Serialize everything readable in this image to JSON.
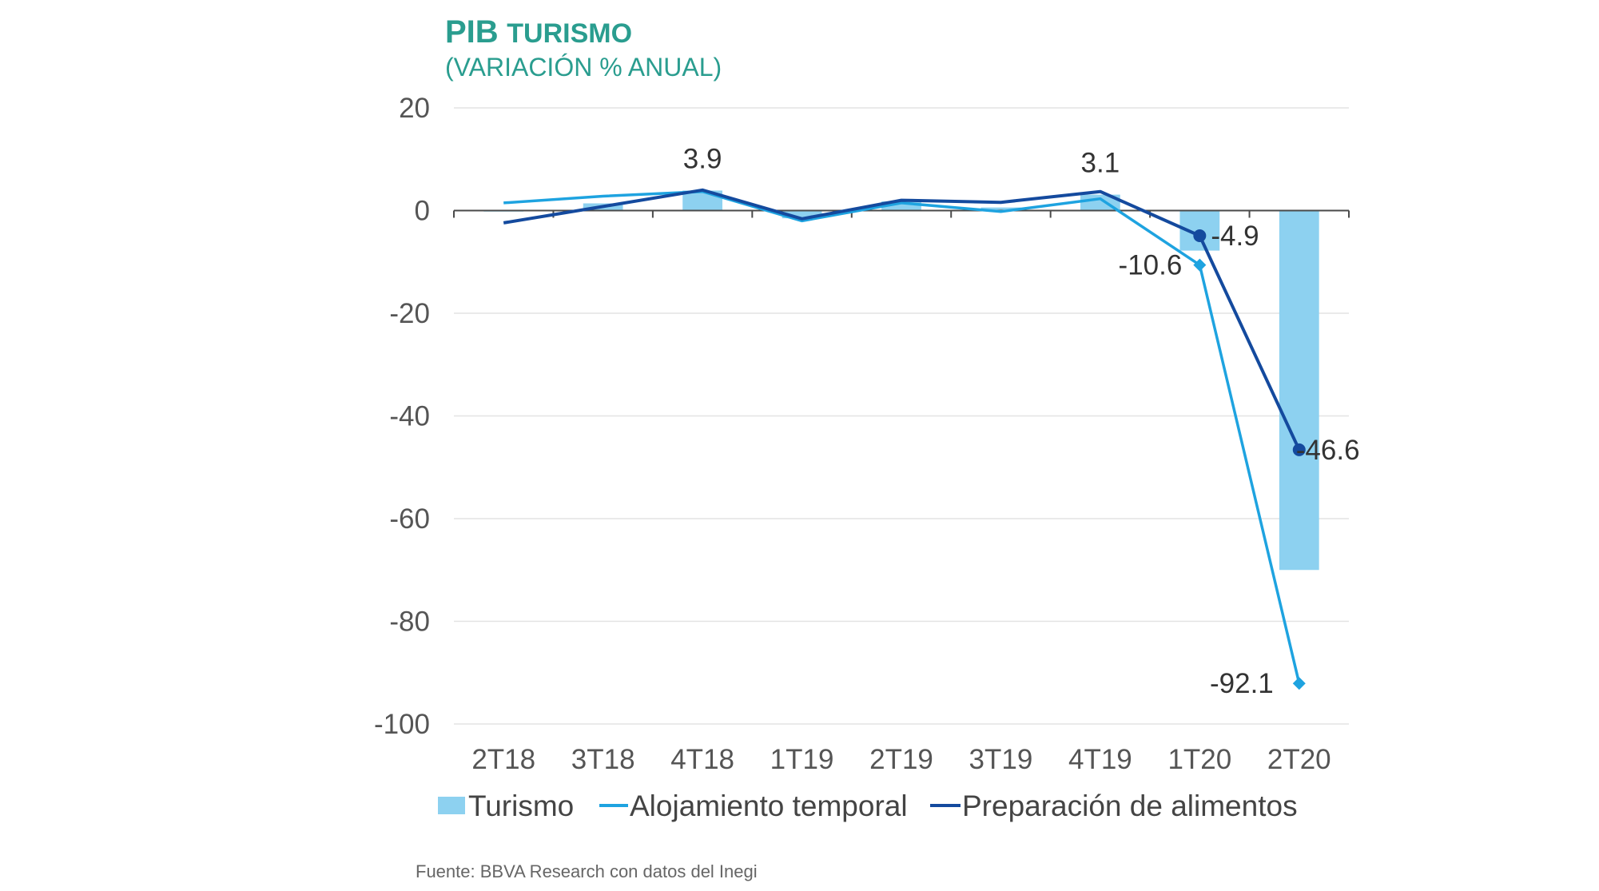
{
  "title": {
    "main_big": "PIB",
    "main_small": "TURISMO",
    "subtitle": "(VARIACIÓN % ANUAL)"
  },
  "source": "Fuente: BBVA Research con datos del Inegi",
  "colors": {
    "turismo": "#8dd1f0",
    "alojamiento": "#1ea3e0",
    "preparacion": "#144a9e",
    "title": "#2a9d8f"
  },
  "chart_data": {
    "type": "bar",
    "categories": [
      "2T18",
      "3T18",
      "4T18",
      "1T19",
      "2T19",
      "3T19",
      "4T19",
      "1T20",
      "2T20"
    ],
    "ylim": [
      -100,
      20
    ],
    "yticks": [
      20,
      0,
      -20,
      -40,
      -60,
      -80,
      -100
    ],
    "grid": true,
    "legend_position": "bottom",
    "series": [
      {
        "name": "Turismo",
        "kind": "bar",
        "values": [
          -0.2,
          1.4,
          3.9,
          -1.5,
          1.8,
          0.6,
          3.1,
          -7.8,
          -70.0
        ]
      },
      {
        "name": "Alojamiento temporal",
        "kind": "line",
        "values": [
          1.5,
          2.8,
          3.7,
          -2.0,
          1.5,
          -0.2,
          2.3,
          -10.6,
          -92.1
        ]
      },
      {
        "name": "Preparación de alimentos",
        "kind": "line",
        "values": [
          -2.4,
          0.8,
          4.0,
          -1.6,
          2.0,
          1.6,
          3.7,
          -4.9,
          -46.6
        ]
      }
    ],
    "annotations": [
      {
        "text": "3.9",
        "category": "4T18",
        "value": 3.9
      },
      {
        "text": "3.1",
        "category": "4T19",
        "value": 3.1
      },
      {
        "text": "-4.9",
        "category": "1T20",
        "value": -4.9
      },
      {
        "text": "-10.6",
        "category": "1T20",
        "value": -10.6
      },
      {
        "text": "-46.6",
        "category": "2T20",
        "value": -46.6
      },
      {
        "text": "-92.1",
        "category": "2T20",
        "value": -92.1
      }
    ]
  }
}
